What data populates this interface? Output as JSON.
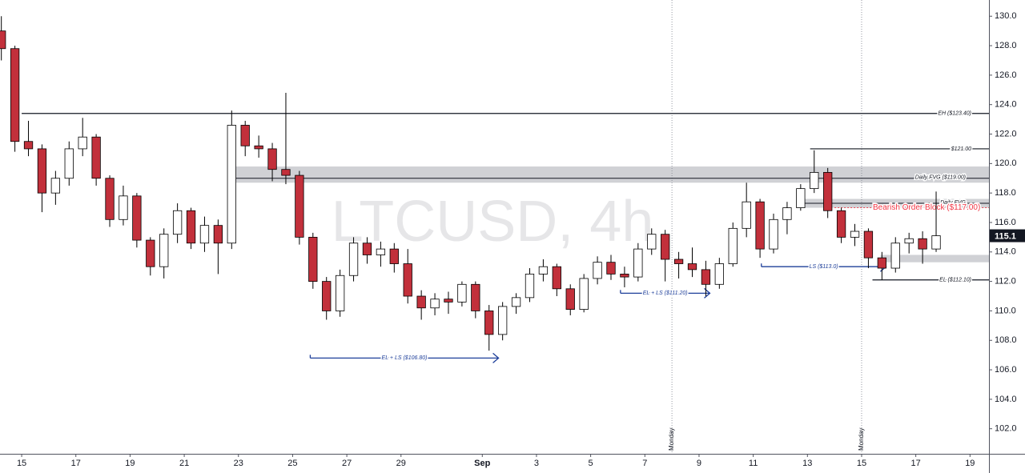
{
  "chart_data": {
    "type": "candlestick",
    "watermark": "LTCUSD, 4h",
    "up_color": "#ffffff",
    "down_color": "#c2303b",
    "wick_color": "#000000",
    "xlim": [
      -0.8,
      35.7
    ],
    "ylim": [
      100.3,
      131.1
    ],
    "xticks": [
      {
        "value": 0,
        "label": "15"
      },
      {
        "value": 2,
        "label": "17"
      },
      {
        "value": 4,
        "label": "19"
      },
      {
        "value": 6,
        "label": "21"
      },
      {
        "value": 8,
        "label": "23"
      },
      {
        "value": 10,
        "label": "25"
      },
      {
        "value": 12,
        "label": "27"
      },
      {
        "value": 14,
        "label": "29"
      },
      {
        "value": 17,
        "label": "Sep"
      },
      {
        "value": 19,
        "label": "3"
      },
      {
        "value": 21,
        "label": "5"
      },
      {
        "value": 23,
        "label": "7"
      },
      {
        "value": 25,
        "label": "9"
      },
      {
        "value": 27,
        "label": "11"
      },
      {
        "value": 29,
        "label": "13"
      },
      {
        "value": 31,
        "label": "15"
      },
      {
        "value": 33,
        "label": "17"
      },
      {
        "value": 35,
        "label": "19"
      }
    ],
    "yticks": [
      {
        "value": 102,
        "label": "102.0"
      },
      {
        "value": 104,
        "label": "104.0"
      },
      {
        "value": 106,
        "label": "106.0"
      },
      {
        "value": 108,
        "label": "108.0"
      },
      {
        "value": 110,
        "label": "110.0"
      },
      {
        "value": 112,
        "label": "112.0"
      },
      {
        "value": 114,
        "label": "114.0"
      },
      {
        "value": 116,
        "label": "116.0"
      },
      {
        "value": 118,
        "label": "118.0"
      },
      {
        "value": 120,
        "label": "120.0"
      },
      {
        "value": 122,
        "label": "122.0"
      },
      {
        "value": 124,
        "label": "124.0"
      },
      {
        "value": 126,
        "label": "126.0"
      },
      {
        "value": 128,
        "label": "128.0"
      },
      {
        "value": 130,
        "label": "130.0"
      }
    ],
    "last_price": 115.1,
    "x": [
      -0.75,
      -0.25,
      0.25,
      0.75,
      1.25,
      1.75,
      2.25,
      2.75,
      3.25,
      3.75,
      4.25,
      4.75,
      5.25,
      5.75,
      6.25,
      6.75,
      7.25,
      7.75,
      8.25,
      8.75,
      9.25,
      9.75,
      10.25,
      10.75,
      11.25,
      11.75,
      12.25,
      12.75,
      13.25,
      13.75,
      14.25,
      14.75,
      15.25,
      15.75,
      16.25,
      16.75,
      17.25,
      17.75,
      18.25,
      18.75,
      19.25,
      19.75,
      20.25,
      20.75,
      21.25,
      21.75,
      22.25,
      22.75,
      23.25,
      23.75,
      24.25,
      24.75,
      25.25,
      25.75,
      26.25,
      26.75,
      27.25,
      27.75,
      28.25,
      28.75,
      29.25,
      29.75,
      30.25,
      30.75,
      31.25,
      31.75,
      32.25,
      32.75,
      33.25,
      33.75
    ],
    "candles": [
      [
        129.0,
        130.0,
        127.0,
        127.8
      ],
      [
        127.8,
        128.0,
        120.8,
        121.5
      ],
      [
        121.5,
        122.9,
        120.5,
        121.0
      ],
      [
        121.0,
        121.3,
        116.7,
        118.0
      ],
      [
        118.0,
        119.5,
        117.2,
        119.0
      ],
      [
        119.0,
        121.5,
        118.5,
        121.0
      ],
      [
        121.0,
        123.1,
        120.5,
        121.8
      ],
      [
        121.8,
        122.0,
        118.5,
        119.0
      ],
      [
        119.0,
        119.2,
        115.7,
        116.2
      ],
      [
        116.2,
        118.5,
        115.8,
        117.8
      ],
      [
        117.8,
        118.0,
        114.3,
        114.8
      ],
      [
        114.8,
        115.0,
        112.4,
        113.0
      ],
      [
        113.0,
        115.6,
        112.2,
        115.2
      ],
      [
        115.2,
        117.3,
        114.6,
        116.8
      ],
      [
        116.8,
        117.0,
        114.2,
        114.6
      ],
      [
        114.6,
        116.4,
        114.0,
        115.8
      ],
      [
        115.8,
        116.2,
        112.5,
        114.6
      ],
      [
        114.6,
        123.6,
        114.2,
        122.6
      ],
      [
        122.6,
        122.9,
        120.5,
        121.2
      ],
      [
        121.2,
        121.9,
        120.4,
        121.0
      ],
      [
        121.0,
        121.4,
        118.8,
        119.6
      ],
      [
        119.6,
        124.8,
        118.6,
        119.2
      ],
      [
        119.2,
        119.5,
        114.5,
        115.0
      ],
      [
        115.0,
        115.3,
        111.5,
        112.0
      ],
      [
        112.0,
        112.3,
        109.4,
        110.0
      ],
      [
        110.0,
        112.8,
        109.6,
        112.4
      ],
      [
        112.4,
        115.0,
        112.0,
        114.6
      ],
      [
        114.6,
        115.0,
        113.2,
        113.8
      ],
      [
        113.8,
        114.7,
        113.0,
        114.2
      ],
      [
        114.2,
        114.6,
        112.6,
        113.2
      ],
      [
        113.2,
        114.2,
        110.5,
        111.0
      ],
      [
        111.0,
        111.4,
        109.4,
        110.2
      ],
      [
        110.2,
        111.2,
        109.7,
        110.8
      ],
      [
        110.8,
        111.3,
        109.8,
        110.6
      ],
      [
        110.6,
        112.0,
        110.3,
        111.8
      ],
      [
        111.8,
        112.0,
        109.5,
        110.0
      ],
      [
        110.0,
        110.4,
        107.3,
        108.4
      ],
      [
        108.4,
        110.6,
        108.0,
        110.3
      ],
      [
        110.3,
        111.2,
        109.8,
        110.9
      ],
      [
        110.9,
        112.9,
        110.6,
        112.5
      ],
      [
        112.5,
        113.5,
        112.0,
        113.0
      ],
      [
        113.0,
        113.2,
        111.0,
        111.5
      ],
      [
        111.5,
        111.8,
        109.7,
        110.1
      ],
      [
        110.1,
        112.5,
        109.9,
        112.2
      ],
      [
        112.2,
        113.7,
        111.8,
        113.3
      ],
      [
        113.3,
        113.8,
        112.1,
        112.5
      ],
      [
        112.5,
        113.0,
        111.6,
        112.3
      ],
      [
        112.3,
        114.6,
        112.0,
        114.2
      ],
      [
        114.2,
        115.6,
        113.8,
        115.2
      ],
      [
        115.2,
        115.5,
        112.0,
        113.5
      ],
      [
        113.5,
        114.0,
        112.2,
        113.2
      ],
      [
        113.2,
        114.3,
        112.3,
        112.8
      ],
      [
        112.8,
        113.4,
        111.0,
        111.8
      ],
      [
        111.8,
        113.6,
        111.5,
        113.2
      ],
      [
        113.2,
        116.0,
        113.0,
        115.6
      ],
      [
        115.6,
        118.7,
        115.0,
        117.4
      ],
      [
        117.4,
        117.6,
        113.6,
        114.2
      ],
      [
        114.2,
        116.6,
        113.9,
        116.2
      ],
      [
        116.2,
        117.4,
        115.2,
        117.0
      ],
      [
        117.0,
        118.6,
        116.8,
        118.3
      ],
      [
        118.3,
        120.9,
        118.0,
        119.4
      ],
      [
        119.4,
        119.7,
        116.3,
        116.8
      ],
      [
        116.8,
        117.0,
        114.6,
        115.0
      ],
      [
        115.0,
        115.9,
        114.4,
        115.4
      ],
      [
        115.4,
        115.6,
        112.9,
        113.6
      ],
      [
        113.6,
        114.0,
        112.1,
        112.9
      ],
      [
        112.9,
        115.0,
        112.6,
        114.6
      ],
      [
        114.6,
        115.3,
        113.9,
        114.9
      ],
      [
        114.9,
        115.4,
        113.2,
        114.2
      ],
      [
        114.2,
        118.1,
        114.0,
        115.1
      ]
    ],
    "bands": [
      {
        "label": "Daily FVG ($119.00)",
        "low": 118.7,
        "high": 119.8,
        "value": 119.0,
        "from": 7.8
      },
      {
        "label": "Daily FVG",
        "low": 117.0,
        "high": 117.6,
        "value": 117.3,
        "from": 28.7
      },
      {
        "low": 113.3,
        "high": 113.8,
        "from": 31.7
      }
    ],
    "levels": [
      {
        "label": "EH ($123.40)",
        "value": 123.4,
        "from": 0,
        "color": "#131722"
      },
      {
        "label": "$121.00",
        "value": 121.0,
        "from": 29.1,
        "color": "#131722"
      },
      {
        "label": "EL ($112.10)",
        "value": 112.1,
        "from": 31.4,
        "color": "#131722"
      },
      {
        "label": "Bearish Order Block ($117.00)",
        "value": 117.0,
        "from": 30.0,
        "color": "#f23645",
        "dashed": true
      }
    ],
    "arrows": [
      {
        "label": "LS ($113.0)",
        "value": 113.0,
        "from": 27.3,
        "to": 31.9,
        "color": "#1e3f9a"
      },
      {
        "label": "EL + LS ($111.20)",
        "value": 111.2,
        "from": 22.1,
        "to": 25.4,
        "color": "#1e3f9a"
      },
      {
        "label": "EL + LS ($106.80)",
        "value": 106.8,
        "from": 10.65,
        "to": 17.6,
        "color": "#1e3f9a"
      }
    ],
    "verticals": [
      {
        "label": "Monday",
        "x": 24
      },
      {
        "label": "Monday",
        "x": 31
      }
    ]
  }
}
